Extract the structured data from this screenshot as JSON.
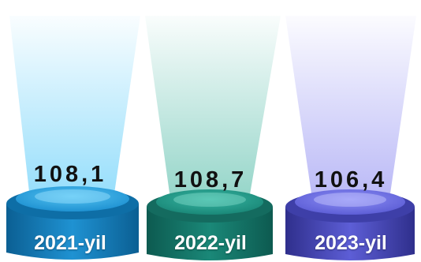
{
  "items": [
    {
      "value": "108,1",
      "year": "2021-yil",
      "color_top": "#56c4f2",
      "color_mid": "#1f92d2",
      "color_dark": "#0b5f93",
      "beam": "#8fdcfb"
    },
    {
      "value": "108,7",
      "year": "2022-yil",
      "color_top": "#39b7a4",
      "color_mid": "#1a8878",
      "color_dark": "#0d5a50",
      "beam": "#8fd3c6"
    },
    {
      "value": "106,4",
      "year": "2023-yil",
      "color_top": "#8d8ff5",
      "color_mid": "#5d5ed6",
      "color_dark": "#2f2f8c",
      "beam": "#b6b5f6"
    }
  ]
}
